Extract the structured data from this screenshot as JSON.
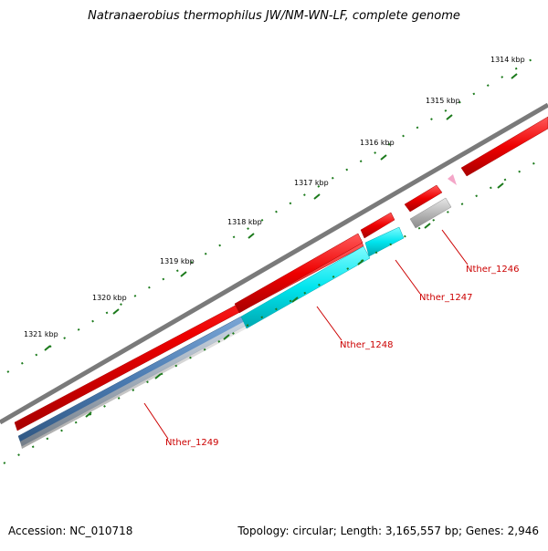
{
  "title": "Natranaerobius thermophilus JW/NM-WN-LF, complete genome",
  "footer": {
    "accession": "Accession: NC_010718",
    "summary": "Topology: circular; Length: 3,165,557 bp; Genes: 2,946"
  },
  "ticks": [
    "1314 kbp",
    "1315 kbp",
    "1316 kbp",
    "1317 kbp",
    "1318 kbp",
    "1319 kbp",
    "1320 kbp",
    "1321 kbp"
  ],
  "genes": [
    "Nther_1246",
    "Nther_1247",
    "Nther_1248",
    "Nther_1249"
  ],
  "colors": {
    "backbone": "#7a7a7a",
    "cds_red": "#ee0000",
    "cds_cyan": "#00e5ee",
    "cds_blue": "#4a7ab0",
    "cds_gray": "#b8b8b8",
    "cds_pink": "#f4a6c8",
    "tick_green": "#1b7a1b",
    "label_red": "#cc0000"
  }
}
